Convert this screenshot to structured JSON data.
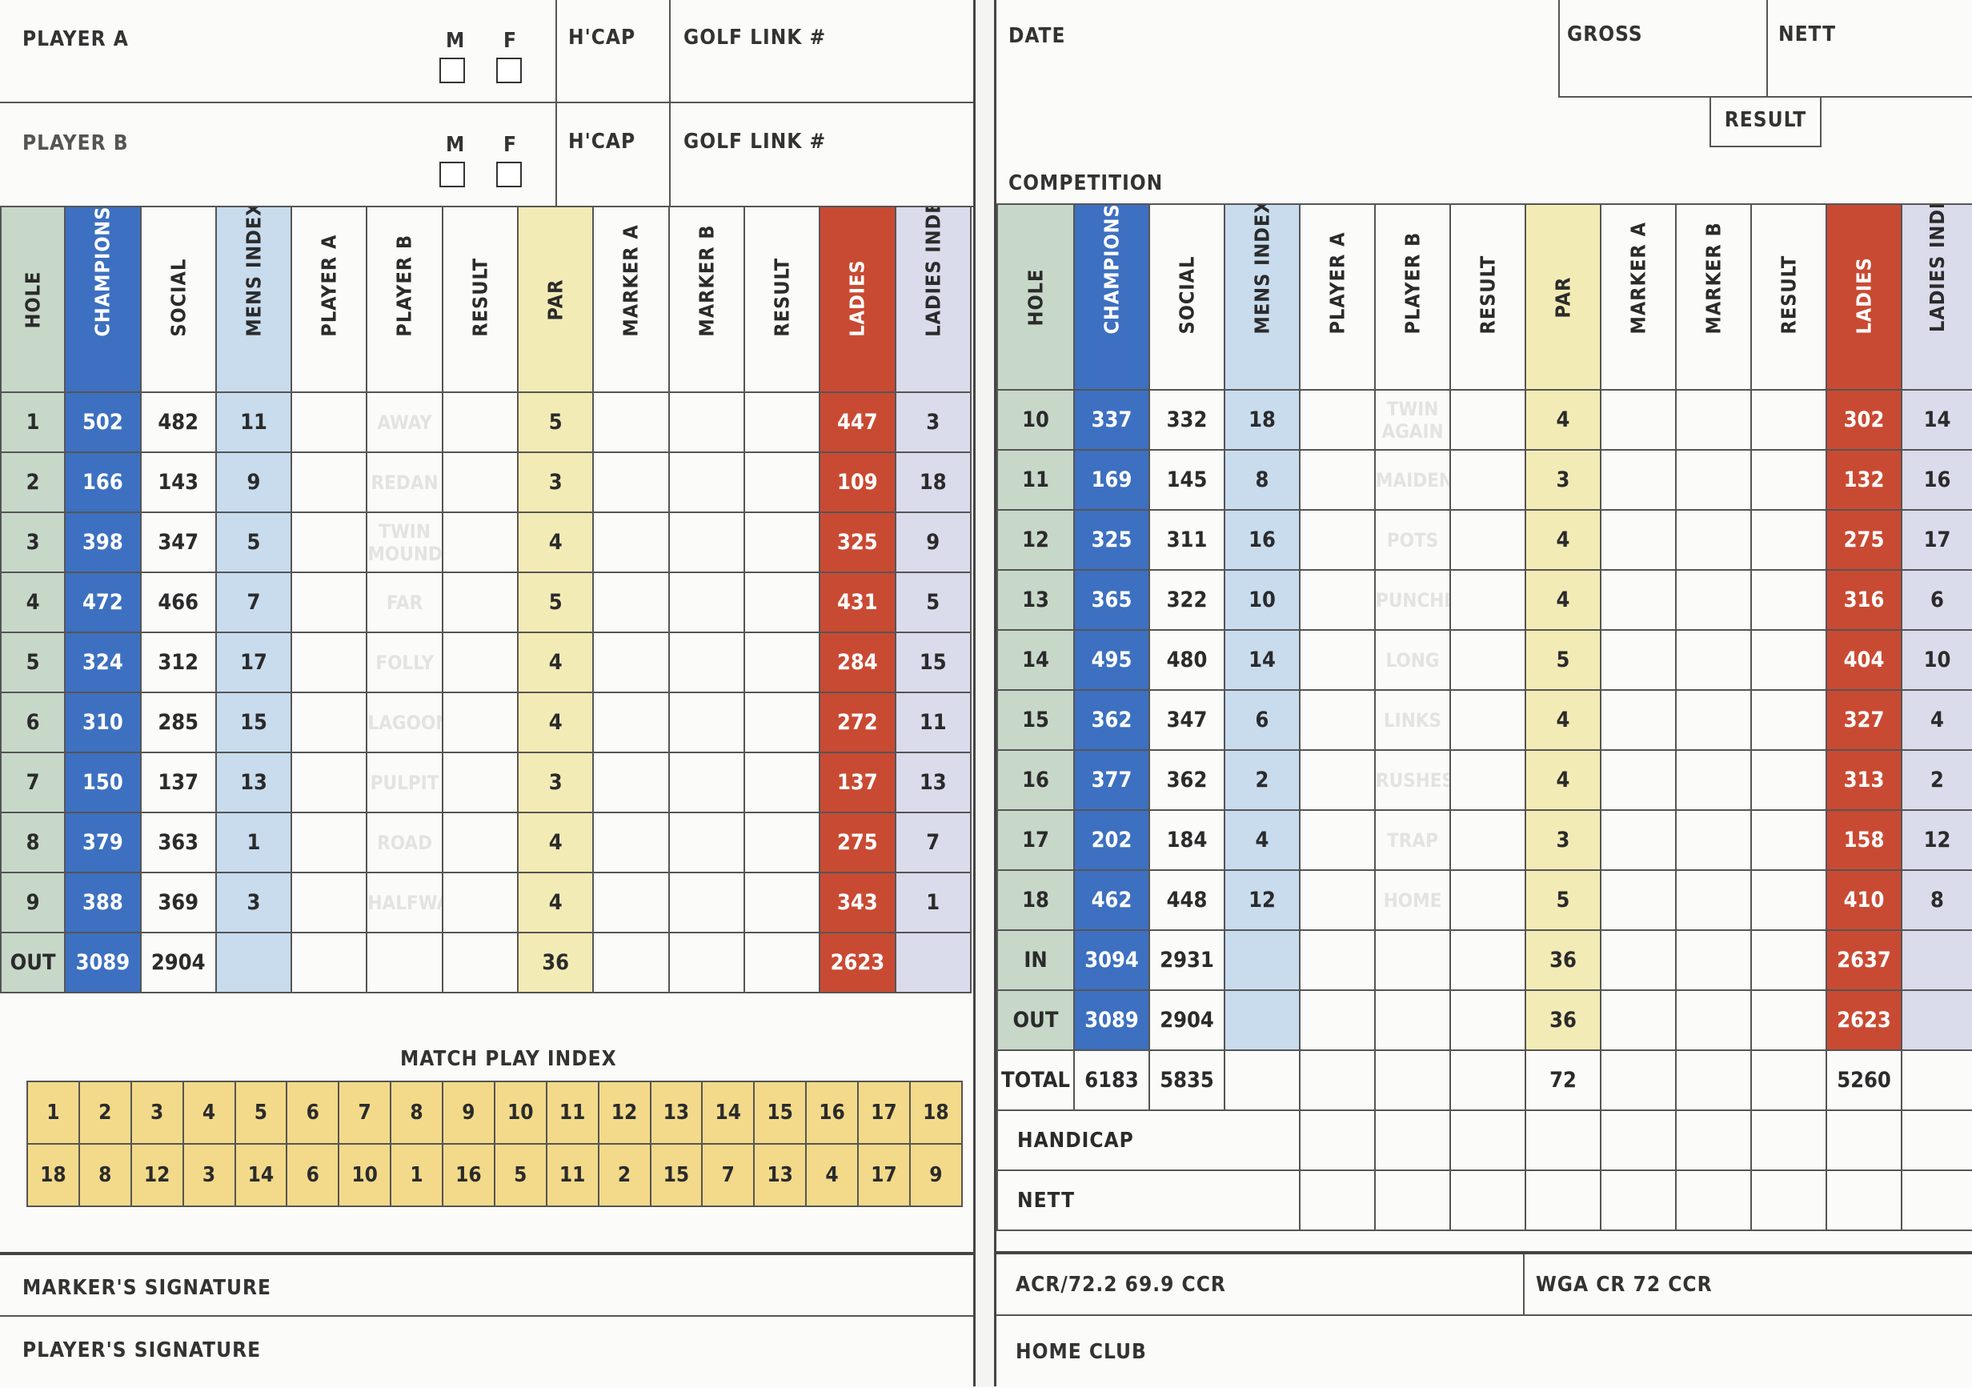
{
  "header": {
    "player_a": "PLAYER A",
    "player_b": "PLAYER B",
    "m": "M",
    "f": "F",
    "hcap": "H'CAP",
    "golf_link": "GOLF LINK #",
    "date": "DATE",
    "gross": "GROSS",
    "nett": "NETT",
    "result": "RESULT",
    "competition": "COMPETITION"
  },
  "columns": [
    "HOLE",
    "CHAMPIONSHIP",
    "SOCIAL",
    "MENS INDEX",
    "PLAYER A",
    "PLAYER B",
    "RESULT",
    "PAR",
    "MARKER A",
    "MARKER B",
    "RESULT",
    "LADIES",
    "LADIES INDEX"
  ],
  "front": [
    {
      "hole": "1",
      "champ": "502",
      "social": "482",
      "mi": "11",
      "name": "AWAY",
      "par": "5",
      "ladies": "447",
      "li": "3"
    },
    {
      "hole": "2",
      "champ": "166",
      "social": "143",
      "mi": "9",
      "name": "REDAN",
      "par": "3",
      "ladies": "109",
      "li": "18"
    },
    {
      "hole": "3",
      "champ": "398",
      "social": "347",
      "mi": "5",
      "name": "TWIN MOUNDS",
      "par": "4",
      "ladies": "325",
      "li": "9"
    },
    {
      "hole": "4",
      "champ": "472",
      "social": "466",
      "mi": "7",
      "name": "FAR",
      "par": "5",
      "ladies": "431",
      "li": "5"
    },
    {
      "hole": "5",
      "champ": "324",
      "social": "312",
      "mi": "17",
      "name": "FOLLY",
      "par": "4",
      "ladies": "284",
      "li": "15"
    },
    {
      "hole": "6",
      "champ": "310",
      "social": "285",
      "mi": "15",
      "name": "LAGOON",
      "par": "4",
      "ladies": "272",
      "li": "11"
    },
    {
      "hole": "7",
      "champ": "150",
      "social": "137",
      "mi": "13",
      "name": "PULPIT",
      "par": "3",
      "ladies": "137",
      "li": "13"
    },
    {
      "hole": "8",
      "champ": "379",
      "social": "363",
      "mi": "1",
      "name": "ROAD",
      "par": "4",
      "ladies": "275",
      "li": "7"
    },
    {
      "hole": "9",
      "champ": "388",
      "social": "369",
      "mi": "3",
      "name": "HALFWAY",
      "par": "4",
      "ladies": "343",
      "li": "1"
    }
  ],
  "front_out": {
    "hole": "OUT",
    "champ": "3089",
    "social": "2904",
    "par": "36",
    "ladies": "2623"
  },
  "back": [
    {
      "hole": "10",
      "champ": "337",
      "social": "332",
      "mi": "18",
      "name": "TWIN AGAIN",
      "par": "4",
      "ladies": "302",
      "li": "14"
    },
    {
      "hole": "11",
      "champ": "169",
      "social": "145",
      "mi": "8",
      "name": "MAIDEN",
      "par": "3",
      "ladies": "132",
      "li": "16"
    },
    {
      "hole": "12",
      "champ": "325",
      "social": "311",
      "mi": "16",
      "name": "POTS",
      "par": "4",
      "ladies": "275",
      "li": "17"
    },
    {
      "hole": "13",
      "champ": "365",
      "social": "322",
      "mi": "10",
      "name": "PUNCHBOWL",
      "par": "4",
      "ladies": "316",
      "li": "6"
    },
    {
      "hole": "14",
      "champ": "495",
      "social": "480",
      "mi": "14",
      "name": "LONG",
      "par": "5",
      "ladies": "404",
      "li": "10"
    },
    {
      "hole": "15",
      "champ": "362",
      "social": "347",
      "mi": "6",
      "name": "LINKS",
      "par": "4",
      "ladies": "327",
      "li": "4"
    },
    {
      "hole": "16",
      "champ": "377",
      "social": "362",
      "mi": "2",
      "name": "RUSHES",
      "par": "4",
      "ladies": "313",
      "li": "2"
    },
    {
      "hole": "17",
      "champ": "202",
      "social": "184",
      "mi": "4",
      "name": "TRAP",
      "par": "3",
      "ladies": "158",
      "li": "12"
    },
    {
      "hole": "18",
      "champ": "462",
      "social": "448",
      "mi": "12",
      "name": "HOME",
      "par": "5",
      "ladies": "410",
      "li": "8"
    }
  ],
  "back_in": {
    "hole": "IN",
    "champ": "3094",
    "social": "2931",
    "par": "36",
    "ladies": "2637"
  },
  "back_out": {
    "hole": "OUT",
    "champ": "3089",
    "social": "2904",
    "par": "36",
    "ladies": "2623"
  },
  "total": {
    "hole": "TOTAL",
    "champ": "6183",
    "social": "5835",
    "par": "72",
    "ladies": "5260"
  },
  "handicap": "HANDICAP",
  "nett": "NETT",
  "match_play": {
    "title": "MATCH PLAY INDEX",
    "holes": [
      "1",
      "2",
      "3",
      "4",
      "5",
      "6",
      "7",
      "8",
      "9",
      "10",
      "11",
      "12",
      "13",
      "14",
      "15",
      "16",
      "17",
      "18"
    ],
    "index": [
      "18",
      "8",
      "12",
      "3",
      "14",
      "6",
      "10",
      "1",
      "16",
      "5",
      "11",
      "2",
      "15",
      "7",
      "13",
      "4",
      "17",
      "9"
    ]
  },
  "footer": {
    "marker_sig": "MARKER'S SIGNATURE",
    "player_sig": "PLAYER'S SIGNATURE",
    "acr": "ACR/72.2 69.9 CCR",
    "wga": "WGA CR 72 CCR",
    "home_club": "HOME CLUB"
  }
}
